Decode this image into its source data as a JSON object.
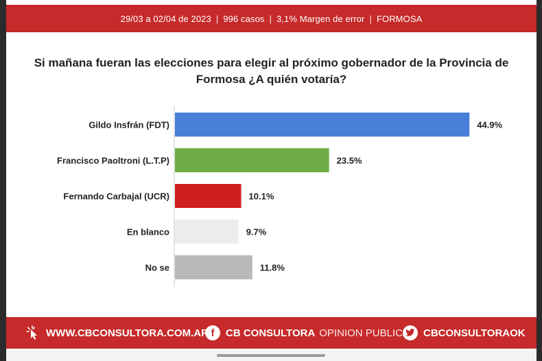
{
  "header": {
    "date_range": "29/03 a 02/04 de 2023",
    "cases": "996 casos",
    "margin": "3,1% Margen de error",
    "province": "FORMOSA",
    "separator": "|"
  },
  "question": {
    "line1": "Si mañana fueran las elecciones para elegir al próximo gobernador de la Provincia de",
    "line2": "Formosa ¿A quién votaría?"
  },
  "chart_data": {
    "type": "bar",
    "orientation": "horizontal",
    "categories": [
      "Gildo Insfrán (FDT)",
      "Francisco Paoltroni (L.T.P)",
      "Fernando Carbajal (UCR)",
      "En blanco",
      "No se"
    ],
    "values": [
      44.9,
      23.5,
      10.1,
      9.7,
      11.8
    ],
    "value_labels": [
      "44.9%",
      "23.5%",
      "10.1%",
      "9.7%",
      "11.8%"
    ],
    "colors": [
      "#4a7fd8",
      "#6fad47",
      "#cf1f1f",
      "#ececec",
      "#b9b9b9"
    ],
    "title": "",
    "xlabel": "",
    "ylabel": "",
    "xlim": [
      0,
      50
    ],
    "grid": false,
    "legend": "none"
  },
  "footer": {
    "website": "WWW.CBCONSULTORA.COM.AR",
    "facebook_bold": "CB CONSULTORA",
    "facebook_light": "OPINION PUBLICA",
    "twitter": "CBCONSULTORAOK",
    "facebook_glyph": "f"
  },
  "colors": {
    "brand_red": "#c62a2a"
  }
}
